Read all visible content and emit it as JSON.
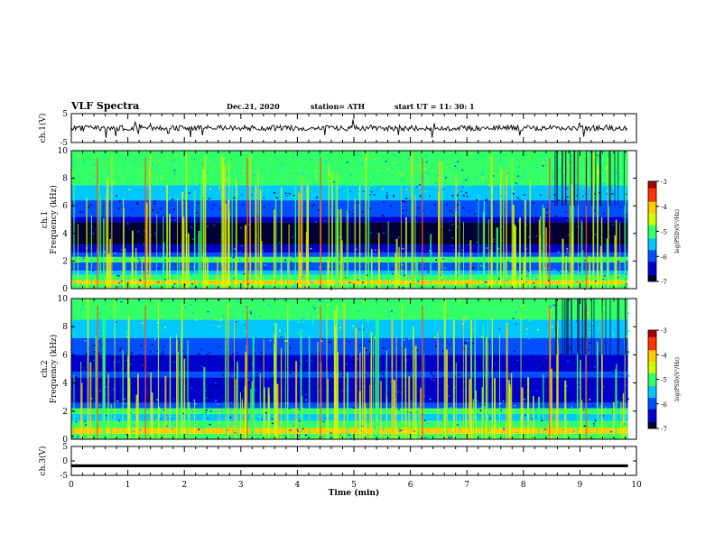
{
  "header": {
    "title": "VLF Spectra",
    "date": "Dec.21, 2020",
    "station": "station= ATH",
    "start": "start  UT  =   11: 30: 1"
  },
  "chart_data": [
    {
      "type": "line",
      "panel": "ch1-waveform",
      "ylabel": "ch.1(V)",
      "ylim": [
        -5,
        5
      ],
      "yticks": [
        "5",
        "-5"
      ],
      "xlim": [
        0,
        10
      ]
    },
    {
      "type": "heatmap",
      "panel": "ch1-spectrogram",
      "ylabel": "ch.1 Frequency (kHz)",
      "ylim": [
        0,
        10
      ],
      "yticks": [
        "0",
        "2",
        "4",
        "6",
        "8",
        "10"
      ],
      "xlim": [
        0,
        10
      ],
      "colorbar": {
        "label": "log(PSD)(V²/Hz)",
        "range": [
          -7,
          -3
        ],
        "ticks": [
          "-3",
          "-4",
          "-5",
          "-6",
          "-7"
        ]
      }
    },
    {
      "type": "heatmap",
      "panel": "ch2-spectrogram",
      "ylabel": "ch.2 Frequency (kHz)",
      "ylim": [
        0,
        10
      ],
      "yticks": [
        "0",
        "2",
        "4",
        "6",
        "8",
        "10"
      ],
      "xlim": [
        0,
        10
      ],
      "colorbar": {
        "label": "log(PSD)(V²/Hz)",
        "range": [
          -7,
          -3
        ],
        "ticks": [
          "-3",
          "-4",
          "-5",
          "-6",
          "-7"
        ]
      }
    },
    {
      "type": "line",
      "panel": "ch3-waveform",
      "ylabel": "ch.3(V)",
      "ylim": [
        -5,
        5
      ],
      "yticks": [
        "5",
        "0",
        "-5"
      ],
      "xlim": [
        0,
        10
      ]
    }
  ],
  "xaxis": {
    "label": "Time  (min)",
    "ticks": [
      "0",
      "1",
      "2",
      "3",
      "4",
      "5",
      "6",
      "7",
      "8",
      "9",
      "10"
    ]
  },
  "colors": {
    "frame": "#000000",
    "colormap": [
      "#000033",
      "#0000cc",
      "#0050ff",
      "#00c8ff",
      "#33ff66",
      "#ccff00",
      "#ffcc00",
      "#ff3300",
      "#aa0000"
    ]
  }
}
